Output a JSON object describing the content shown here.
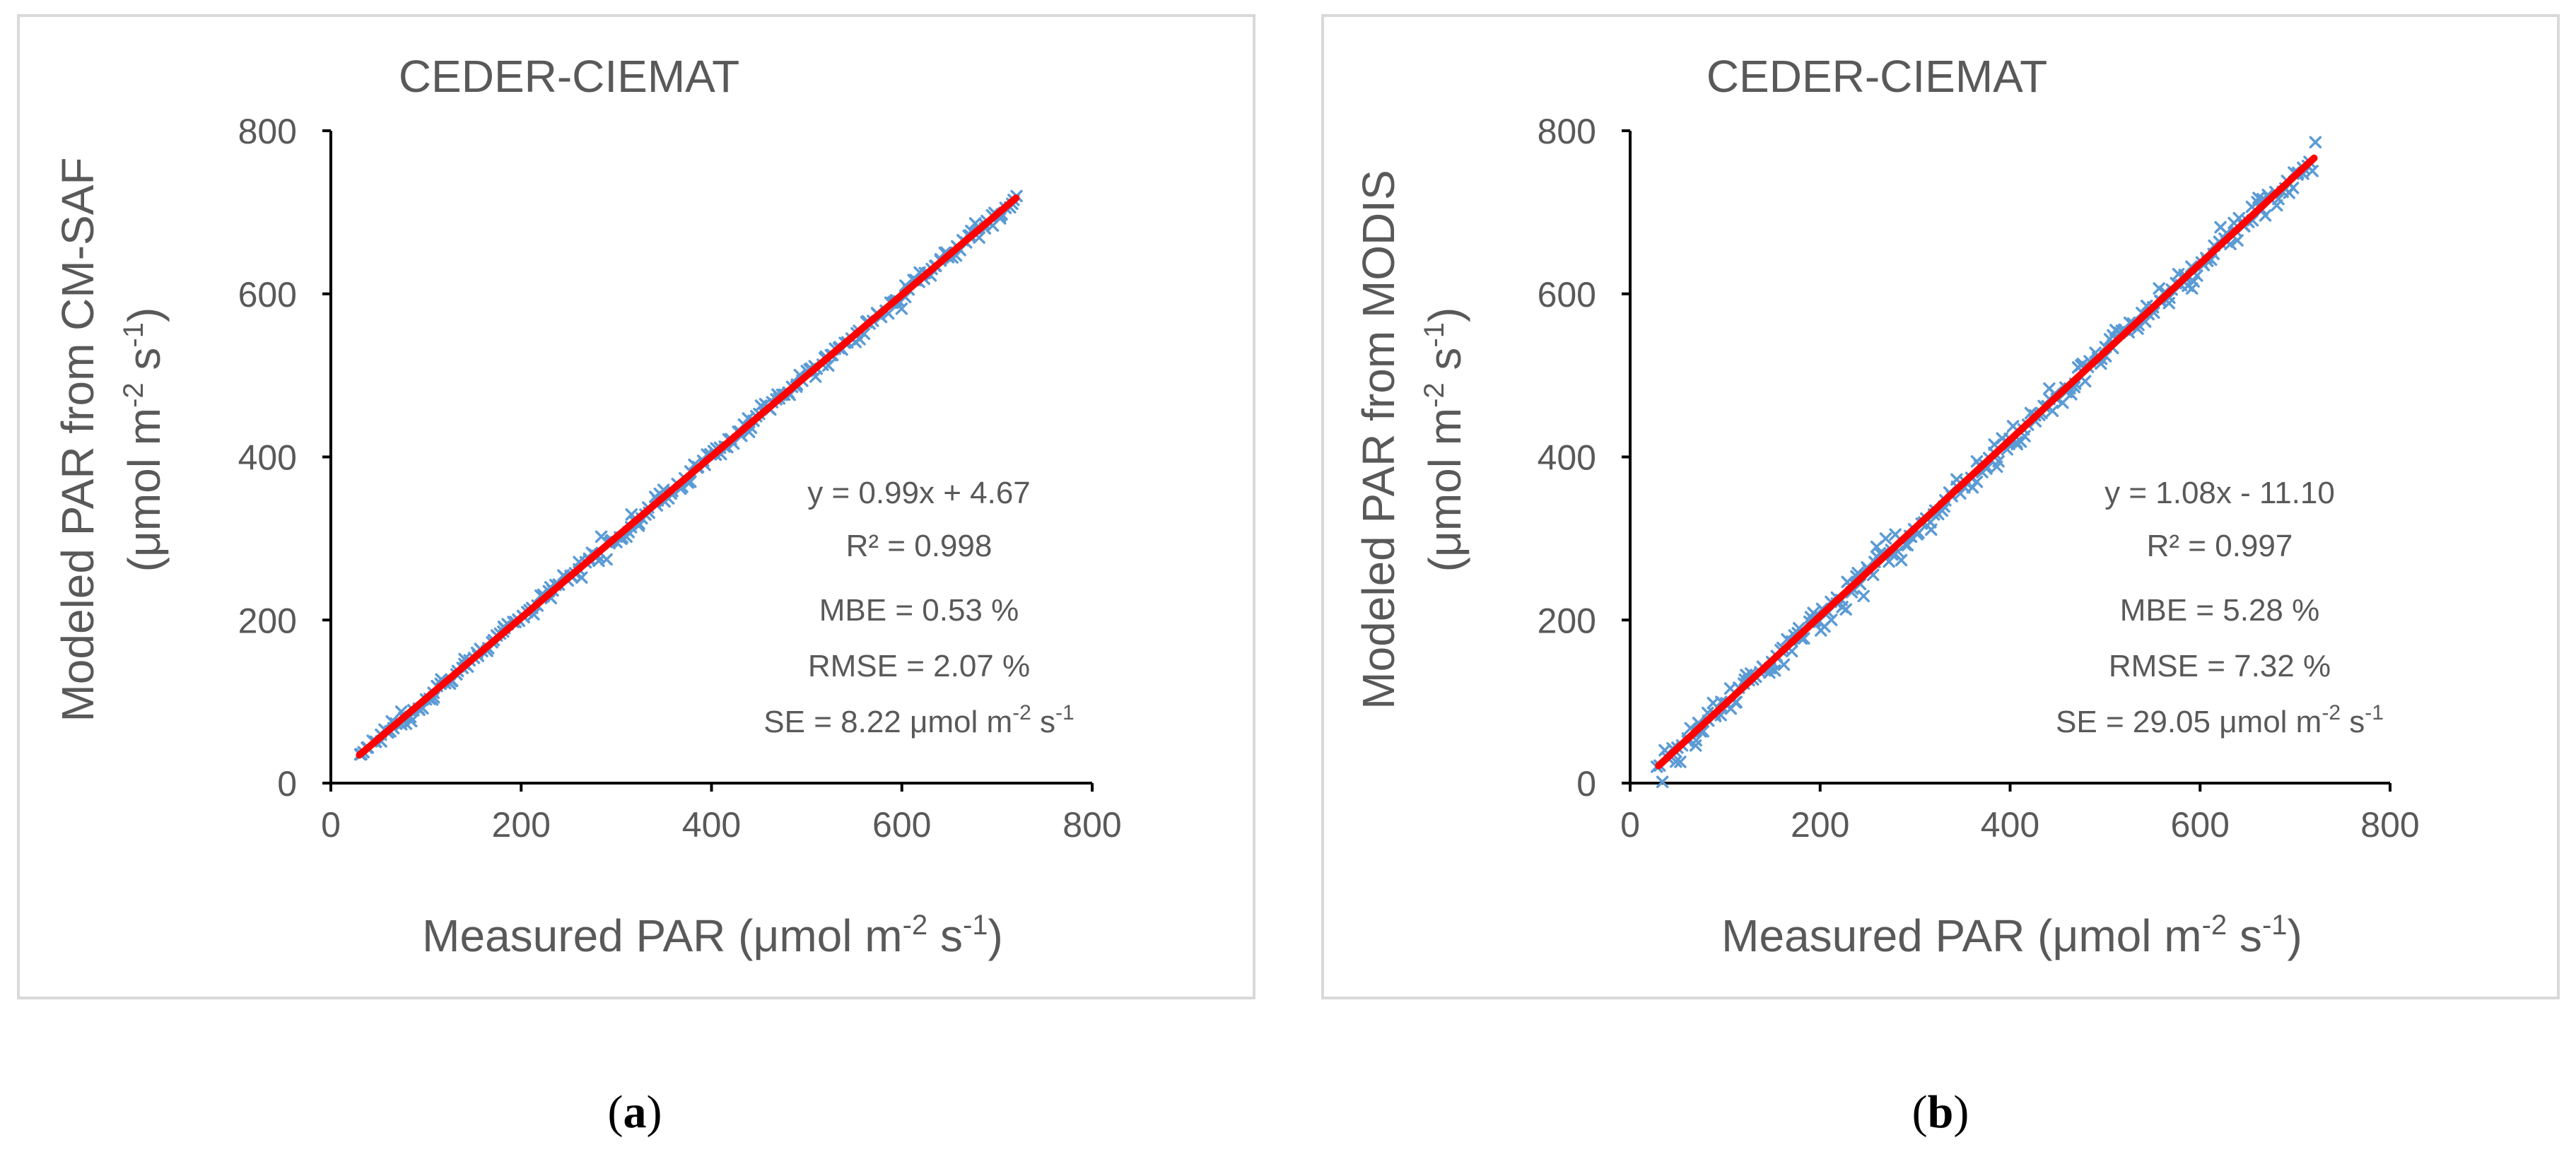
{
  "colors": {
    "marker": "#5b9bd5",
    "trendline": "#ff0000"
  },
  "chart_data": [
    {
      "type": "scatter",
      "panel_label": "a",
      "title": "CEDER-CIEMAT",
      "xlabel": {
        "text": "Measured PAR (μmol m",
        "sup1": "-2",
        "mid": " s",
        "sup2": "-1",
        "end": ")"
      },
      "ylabel": {
        "line1": "Modeled PAR from CM-SAF",
        "line2_text": "(μmol m",
        "line2_sup1": "-2",
        "line2_mid": " s",
        "line2_sup2": "-1",
        "line2_end": ")"
      },
      "xlim": [
        0,
        800
      ],
      "ylim": [
        0,
        800
      ],
      "xticks": [
        "0",
        "200",
        "400",
        "600",
        "800"
      ],
      "yticks": [
        "0",
        "200",
        "400",
        "600",
        "800"
      ],
      "marker": "cross",
      "series": [
        {
          "name": "PAR",
          "x_range": [
            30,
            720
          ],
          "n_points": 260,
          "slope": 0.99,
          "intercept": 4.67,
          "scatter_sd": 8.22
        }
      ],
      "trendline": {
        "slope": 0.99,
        "intercept": 4.67,
        "x_range": [
          30,
          720
        ]
      },
      "stats": {
        "equation": "y = 0.99x + 4.67",
        "r2": "R² = 0.998",
        "mbe": "MBE = 0.53 %",
        "rmse": "RMSE = 2.07 %",
        "se_text": "SE = 8.22 μmol m",
        "se_sup1": "-2",
        "se_mid": " s",
        "se_sup2": "-1"
      }
    },
    {
      "type": "scatter",
      "panel_label": "b",
      "title": "CEDER-CIEMAT",
      "xlabel": {
        "text": "Measured PAR (μmol m",
        "sup1": "-2",
        "mid": " s",
        "sup2": "-1",
        "end": ")"
      },
      "ylabel": {
        "line1": "Modeled PAR from MODIS",
        "line2_text": "(μmol m",
        "line2_sup1": "-2",
        "line2_mid": " s",
        "line2_sup2": "-1",
        "line2_end": ")"
      },
      "xlim": [
        0,
        800
      ],
      "ylim": [
        0,
        800
      ],
      "xticks": [
        "0",
        "200",
        "400",
        "600",
        "800"
      ],
      "yticks": [
        "0",
        "200",
        "400",
        "600",
        "800"
      ],
      "marker": "cross",
      "series": [
        {
          "name": "PAR",
          "x_range": [
            30,
            720
          ],
          "n_points": 260,
          "slope": 1.08,
          "intercept": -11.1,
          "scatter_sd": 15
        }
      ],
      "trendline": {
        "slope": 1.08,
        "intercept": -11.1,
        "x_range": [
          30,
          720
        ]
      },
      "stats": {
        "equation": "y = 1.08x - 11.10",
        "r2": "R² = 0.997",
        "mbe": "MBE = 5.28 %",
        "rmse": "RMSE = 7.32 %",
        "se_text": "SE = 29.05 μmol m",
        "se_sup1": "-2",
        "se_mid": " s",
        "se_sup2": "-1"
      }
    }
  ]
}
